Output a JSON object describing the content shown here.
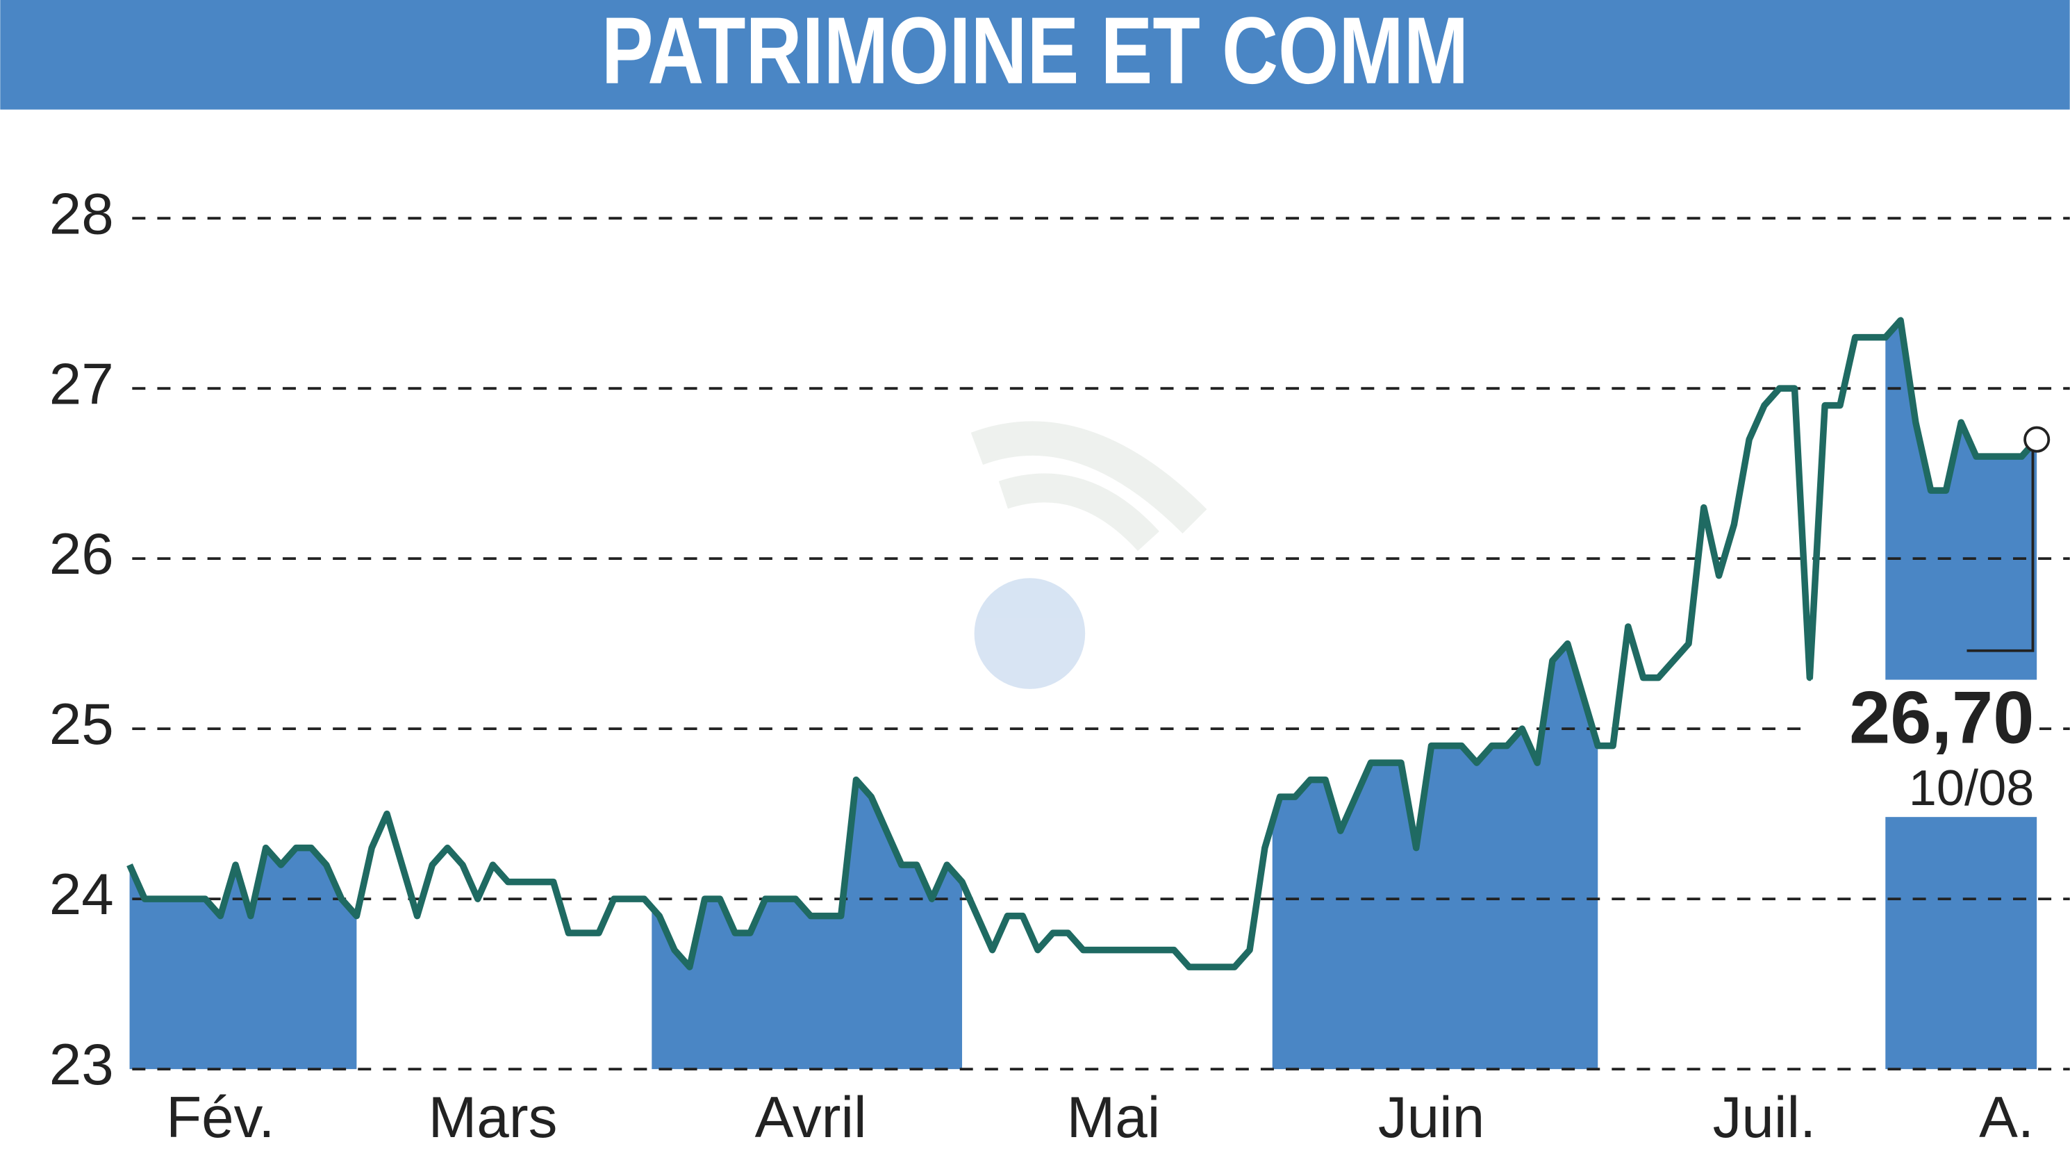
{
  "chart_data": {
    "type": "line",
    "title": "PATRIMOINE ET COMM",
    "categories": [
      null,
      null,
      null,
      null,
      null,
      null,
      "Fév.",
      null,
      null,
      null,
      null,
      null,
      null,
      null,
      null,
      null,
      null,
      null,
      null,
      null,
      null,
      null,
      null,
      null,
      "Mars",
      null,
      null,
      null,
      null,
      null,
      null,
      null,
      null,
      null,
      null,
      null,
      null,
      null,
      null,
      null,
      null,
      null,
      null,
      null,
      null,
      "Avril",
      null,
      null,
      null,
      null,
      null,
      null,
      null,
      null,
      null,
      null,
      null,
      null,
      null,
      null,
      null,
      null,
      null,
      null,
      null,
      "Mai",
      null,
      null,
      null,
      null,
      null,
      null,
      null,
      null,
      null,
      null,
      null,
      null,
      null,
      null,
      null,
      null,
      null,
      null,
      null,
      null,
      "Juin",
      null,
      null,
      null,
      null,
      null,
      null,
      null,
      null,
      null,
      null,
      null,
      null,
      null,
      null,
      null,
      null,
      null,
      null,
      null,
      null,
      null,
      "Juil.",
      null,
      null,
      null,
      null,
      null,
      null,
      null,
      null,
      null,
      null,
      null,
      null,
      null,
      null,
      null,
      "A.",
      null,
      null
    ],
    "values": [
      24.2,
      24.0,
      24.0,
      24.0,
      24.0,
      24.0,
      23.9,
      24.2,
      23.9,
      24.3,
      24.2,
      24.3,
      24.3,
      24.2,
      24.0,
      23.9,
      24.3,
      24.5,
      24.2,
      23.9,
      24.2,
      24.3,
      24.2,
      24.0,
      24.2,
      24.1,
      24.1,
      24.1,
      24.1,
      23.8,
      23.8,
      23.8,
      24.0,
      24.0,
      24.0,
      23.9,
      23.7,
      23.6,
      24.0,
      24.0,
      23.8,
      23.8,
      24.0,
      24.0,
      24.0,
      23.9,
      23.9,
      23.9,
      24.7,
      24.6,
      24.4,
      24.2,
      24.2,
      24.0,
      24.2,
      24.1,
      23.9,
      23.7,
      23.9,
      23.9,
      23.7,
      23.8,
      23.8,
      23.7,
      23.7,
      23.7,
      23.7,
      23.7,
      23.7,
      23.7,
      23.6,
      23.6,
      23.6,
      23.6,
      23.7,
      24.3,
      24.6,
      24.6,
      24.7,
      24.7,
      24.4,
      24.6,
      24.8,
      24.8,
      24.8,
      24.3,
      24.9,
      24.9,
      24.9,
      24.8,
      24.9,
      24.9,
      25.0,
      24.8,
      25.4,
      25.5,
      25.2,
      24.9,
      24.9,
      25.6,
      25.3,
      25.3,
      25.4,
      25.5,
      26.3,
      25.9,
      26.2,
      26.7,
      26.9,
      27.0,
      27.0,
      25.3,
      26.9,
      26.9,
      27.3,
      27.3,
      27.3,
      27.4,
      26.8,
      26.4,
      26.4,
      26.8,
      26.6,
      26.6,
      26.6,
      26.6,
      26.7
    ],
    "color": "#1f6a62",
    "shade_color": "#4a86c5",
    "last_value_label": "26,70",
    "last_date": "10/08",
    "ylim": [
      23,
      28.6
    ],
    "yticks": [
      23,
      24,
      25,
      26,
      27,
      28
    ],
    "grid": true
  }
}
